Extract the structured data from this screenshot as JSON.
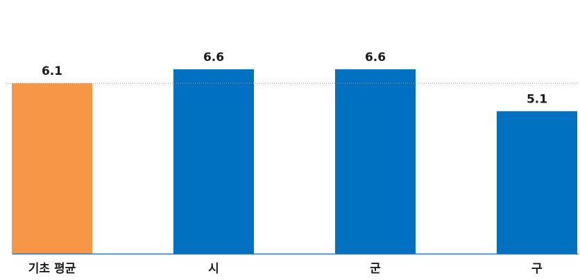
{
  "chart_data": {
    "type": "bar",
    "categories": [
      "기초 평균",
      "시",
      "군",
      "구"
    ],
    "values": [
      6.1,
      6.6,
      6.6,
      5.1
    ],
    "value_labels": [
      "6.1",
      "6.6",
      "6.6",
      "5.1"
    ],
    "ylim": [
      0,
      6.6
    ],
    "reference_line": 6.1,
    "grid": false,
    "colors": {
      "highlight": "#F79646",
      "bar": "#0070C0",
      "baseline": "#2E75B6",
      "reference": "#999999"
    }
  }
}
